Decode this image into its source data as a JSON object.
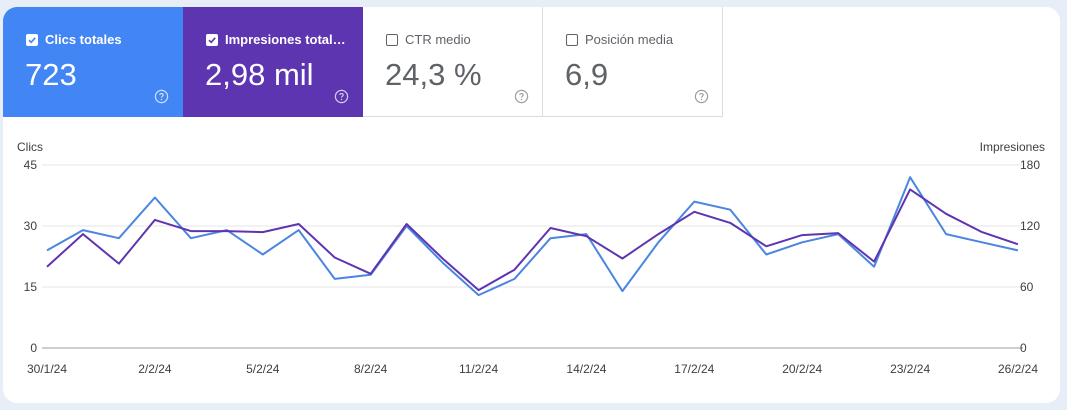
{
  "cards": [
    {
      "label": "Clics totales",
      "value": "723",
      "checked": true,
      "color": "#4285f4"
    },
    {
      "label": "Impresiones total…",
      "value": "2,98 mil",
      "checked": true,
      "color": "#5e35b1"
    },
    {
      "label": "CTR medio",
      "value": "24,3 %",
      "checked": false
    },
    {
      "label": "Posición media",
      "value": "6,9",
      "checked": false
    }
  ],
  "help_icon": "question-circle-icon",
  "chart_data": {
    "type": "line",
    "xlabel": "",
    "x": [
      "30/1/24",
      "31/1/24",
      "1/2/24",
      "2/2/24",
      "3/2/24",
      "4/2/24",
      "5/2/24",
      "6/2/24",
      "7/2/24",
      "8/2/24",
      "9/2/24",
      "10/2/24",
      "11/2/24",
      "12/2/24",
      "13/2/24",
      "14/2/24",
      "15/2/24",
      "16/2/24",
      "17/2/24",
      "18/2/24",
      "19/2/24",
      "20/2/24",
      "21/2/24",
      "22/2/24",
      "23/2/24",
      "24/2/24",
      "25/2/24",
      "26/2/24"
    ],
    "x_tick_labels": [
      "30/1/24",
      "2/2/24",
      "5/2/24",
      "8/2/24",
      "11/2/24",
      "14/2/24",
      "17/2/24",
      "20/2/24",
      "23/2/24",
      "26/2/24"
    ],
    "y_left": {
      "label": "Clics",
      "range": [
        0,
        45
      ],
      "ticks": [
        "0",
        "15",
        "30",
        "45"
      ]
    },
    "y_right": {
      "label": "Impresiones",
      "range": [
        0,
        180
      ],
      "ticks": [
        "0",
        "60",
        "120",
        "180"
      ]
    },
    "grid": true,
    "series": [
      {
        "name": "Clics totales",
        "axis": "left",
        "color": "#4a86e0",
        "values": [
          24,
          29,
          27,
          37,
          27,
          29,
          23,
          29,
          17,
          18,
          30,
          21,
          13,
          17,
          27,
          28,
          14,
          26,
          36,
          34,
          23,
          26,
          28,
          20,
          42,
          28,
          26,
          24
        ]
      },
      {
        "name": "Impresiones totales",
        "axis": "right",
        "color": "#5e35b1",
        "values": [
          80,
          112,
          83,
          126,
          115,
          115,
          114,
          122,
          89,
          73,
          122,
          88,
          57,
          77,
          118,
          110,
          88,
          112,
          134,
          123,
          100,
          111,
          113,
          85,
          156,
          132,
          114,
          102
        ]
      }
    ]
  }
}
